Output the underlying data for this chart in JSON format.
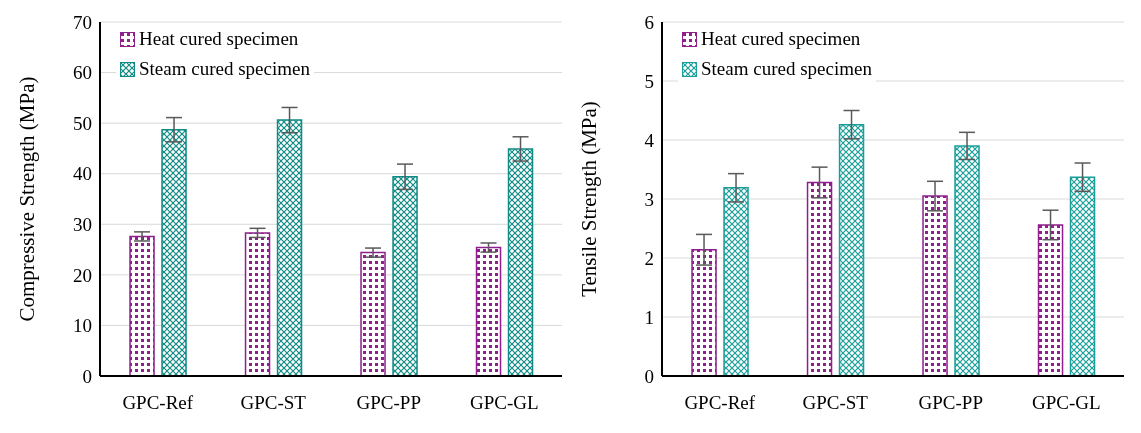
{
  "chart_data": [
    {
      "type": "bar",
      "categories": [
        "GPC-Ref",
        "GPC-ST",
        "GPC-PP",
        "GPC-GL"
      ],
      "ylabel": "Compressive  Strength  (MPa)",
      "ylim": [
        0,
        70
      ],
      "yticks": [
        0,
        10,
        20,
        30,
        40,
        50,
        60,
        70
      ],
      "grid": "y",
      "legend": "top left",
      "series": [
        {
          "name": "Heat cured specimen",
          "color": "#8e1f8c",
          "values": [
            27.6,
            28.3,
            24.4,
            25.4
          ],
          "errors": [
            0.9,
            0.9,
            0.9,
            0.9
          ]
        },
        {
          "name": "Steam cured specimen",
          "color": "#0f8a85",
          "values": [
            48.7,
            50.6,
            39.4,
            44.9
          ],
          "errors": [
            2.4,
            2.5,
            2.5,
            2.4
          ]
        }
      ]
    },
    {
      "type": "bar",
      "categories": [
        "GPC-Ref",
        "GPC-ST",
        "GPC-PP",
        "GPC-GL"
      ],
      "ylabel": "Tensile Strength (MPa)",
      "ylim": [
        0,
        6
      ],
      "yticks": [
        0,
        1,
        2,
        3,
        4,
        5,
        6
      ],
      "grid": "y",
      "legend": "top left",
      "series": [
        {
          "name": "Heat cured specimen",
          "color": "#8e1f8c",
          "values": [
            2.14,
            3.28,
            3.05,
            2.56
          ],
          "errors": [
            0.26,
            0.26,
            0.25,
            0.25
          ]
        },
        {
          "name": "Steam cured specimen",
          "color": "#1a9e9a",
          "values": [
            3.19,
            4.26,
            3.9,
            3.37
          ],
          "errors": [
            0.24,
            0.24,
            0.23,
            0.24
          ]
        }
      ]
    }
  ]
}
